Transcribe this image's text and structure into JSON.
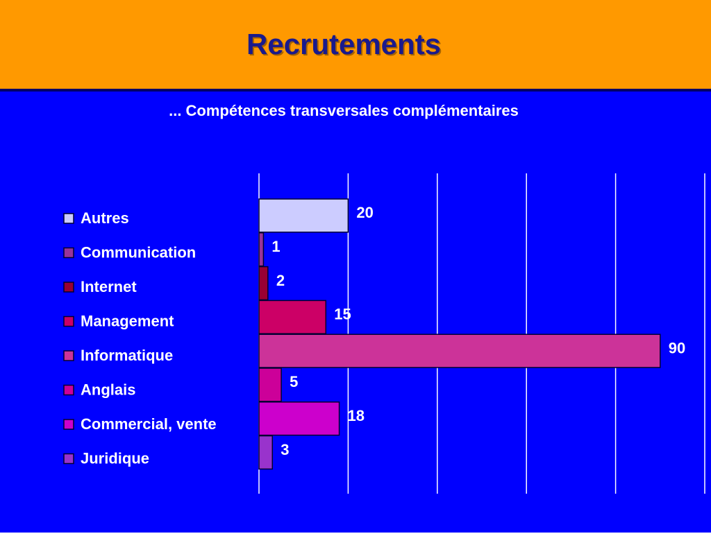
{
  "title": "Recrutements",
  "chart_data": {
    "type": "bar",
    "orientation": "horizontal",
    "subtitle": "... Compétences transversales complémentaires",
    "categories": [
      "Autres",
      "Communication",
      "Internet",
      "Management",
      "Informatique",
      "Anglais",
      "Commercial, vente",
      "Juridique"
    ],
    "values": [
      20,
      1,
      2,
      15,
      90,
      5,
      18,
      3
    ],
    "colors": [
      "#ccccff",
      "#993399",
      "#990033",
      "#cc0066",
      "#cc3399",
      "#cc0099",
      "#cc00cc",
      "#9933cc"
    ],
    "xlim": [
      0,
      100
    ],
    "xticks": [
      0,
      20,
      40,
      60,
      80,
      100
    ],
    "grid": true,
    "legend": "left"
  }
}
